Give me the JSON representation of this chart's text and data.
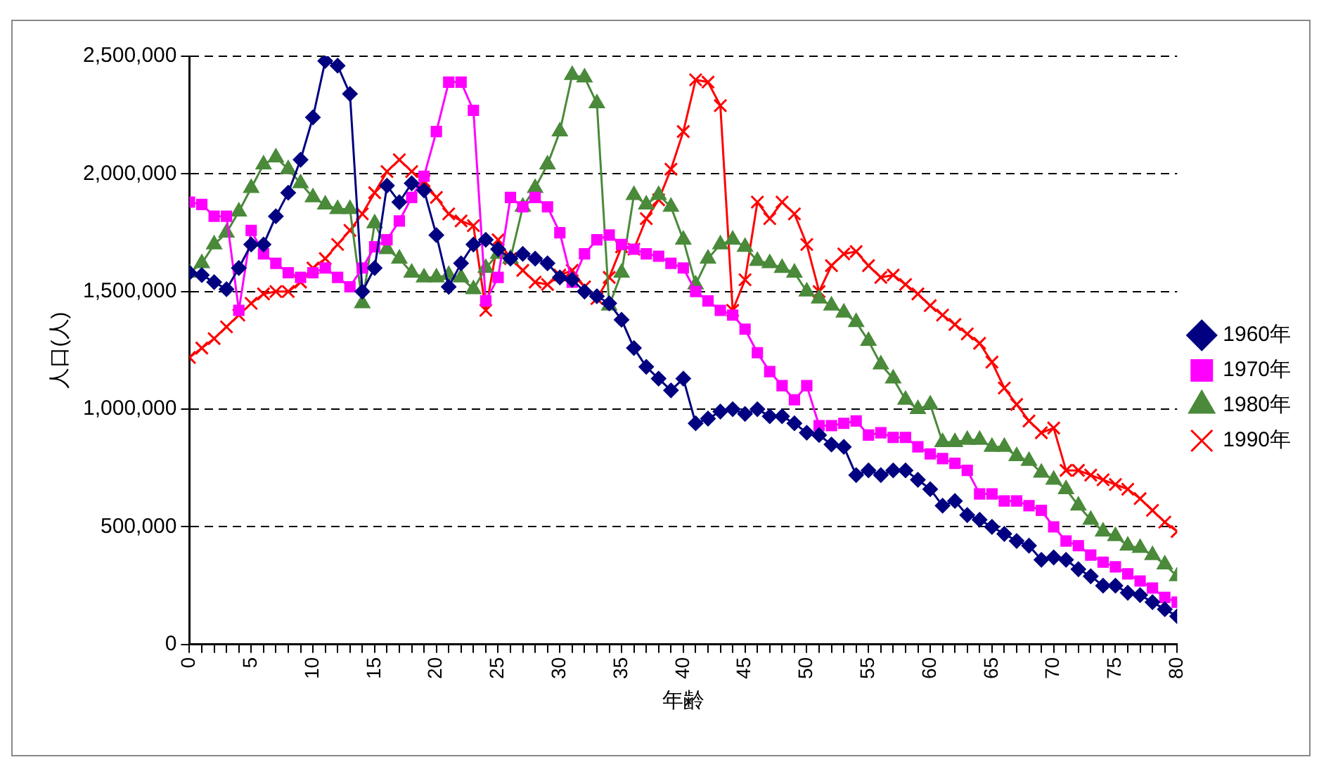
{
  "chart_data": {
    "type": "line",
    "xlabel": "年齢",
    "ylabel": "人口(人)",
    "x": [
      0,
      1,
      2,
      3,
      4,
      5,
      6,
      7,
      8,
      9,
      10,
      11,
      12,
      13,
      14,
      15,
      16,
      17,
      18,
      19,
      20,
      21,
      22,
      23,
      24,
      25,
      26,
      27,
      28,
      29,
      30,
      31,
      32,
      33,
      34,
      35,
      36,
      37,
      38,
      39,
      40,
      41,
      42,
      43,
      44,
      45,
      46,
      47,
      48,
      49,
      50,
      51,
      52,
      53,
      54,
      55,
      56,
      57,
      58,
      59,
      60,
      61,
      62,
      63,
      64,
      65,
      66,
      67,
      68,
      69,
      70,
      71,
      72,
      73,
      74,
      75,
      76,
      77,
      78,
      79,
      80
    ],
    "xlim": [
      0,
      80
    ],
    "xticks": [
      0,
      {
        "value": 1,
        "label": null
      },
      {
        "value": 2,
        "label": null
      },
      {
        "value": 3,
        "label": null
      },
      {
        "value": 4,
        "label": null
      },
      5,
      {
        "value": 6,
        "label": null
      },
      {
        "value": 7,
        "label": null
      },
      {
        "value": 8,
        "label": null
      },
      {
        "value": 9,
        "label": null
      },
      10,
      {
        "value": 11,
        "label": null
      },
      {
        "value": 12,
        "label": null
      },
      {
        "value": 13,
        "label": null
      },
      {
        "value": 14,
        "label": null
      },
      15,
      {
        "value": 16,
        "label": null
      },
      {
        "value": 17,
        "label": null
      },
      {
        "value": 18,
        "label": null
      },
      {
        "value": 19,
        "label": null
      },
      20,
      {
        "value": 21,
        "label": null
      },
      {
        "value": 22,
        "label": null
      },
      {
        "value": 23,
        "label": null
      },
      {
        "value": 24,
        "label": null
      },
      25,
      {
        "value": 26,
        "label": null
      },
      {
        "value": 27,
        "label": null
      },
      {
        "value": 28,
        "label": null
      },
      {
        "value": 29,
        "label": null
      },
      30,
      {
        "value": 31,
        "label": null
      },
      {
        "value": 32,
        "label": null
      },
      {
        "value": 33,
        "label": null
      },
      {
        "value": 34,
        "label": null
      },
      35,
      {
        "value": 36,
        "label": null
      },
      {
        "value": 37,
        "label": null
      },
      {
        "value": 38,
        "label": null
      },
      {
        "value": 39,
        "label": null
      },
      40,
      {
        "value": 41,
        "label": null
      },
      {
        "value": 42,
        "label": null
      },
      {
        "value": 43,
        "label": null
      },
      {
        "value": 44,
        "label": null
      },
      45,
      {
        "value": 46,
        "label": null
      },
      {
        "value": 47,
        "label": null
      },
      {
        "value": 48,
        "label": null
      },
      {
        "value": 49,
        "label": null
      },
      50,
      {
        "value": 51,
        "label": null
      },
      {
        "value": 52,
        "label": null
      },
      {
        "value": 53,
        "label": null
      },
      {
        "value": 54,
        "label": null
      },
      55,
      {
        "value": 56,
        "label": null
      },
      {
        "value": 57,
        "label": null
      },
      {
        "value": 58,
        "label": null
      },
      {
        "value": 59,
        "label": null
      },
      60,
      {
        "value": 61,
        "label": null
      },
      {
        "value": 62,
        "label": null
      },
      {
        "value": 63,
        "label": null
      },
      {
        "value": 64,
        "label": null
      },
      65,
      {
        "value": 66,
        "label": null
      },
      {
        "value": 67,
        "label": null
      },
      {
        "value": 68,
        "label": null
      },
      {
        "value": 69,
        "label": null
      },
      70,
      {
        "value": 71,
        "label": null
      },
      {
        "value": 72,
        "label": null
      },
      {
        "value": 73,
        "label": null
      },
      {
        "value": 74,
        "label": null
      },
      75,
      {
        "value": 76,
        "label": null
      },
      {
        "value": 77,
        "label": null
      },
      {
        "value": 78,
        "label": null
      },
      {
        "value": 79,
        "label": null
      },
      80
    ],
    "ylim": [
      0,
      2500000
    ],
    "yticks": [
      {
        "value": 0,
        "label": "0"
      },
      {
        "value": 500000,
        "label": "500,000"
      },
      {
        "value": 1000000,
        "label": "1,000,000"
      },
      {
        "value": 1500000,
        "label": "1,500,000"
      },
      {
        "value": 2000000,
        "label": "2,000,000"
      },
      {
        "value": 2500000,
        "label": "2,500,000"
      }
    ],
    "grid": "y",
    "legend": "right",
    "line_style": "solid",
    "series": [
      {
        "name": "1960年",
        "color": "#000080",
        "marker": "diamond",
        "values": [
          1580000,
          1570000,
          1540000,
          1510000,
          1600000,
          1700000,
          1700000,
          1820000,
          1920000,
          2060000,
          2240000,
          2480000,
          2460000,
          2340000,
          1500000,
          1600000,
          1950000,
          1880000,
          1960000,
          1930000,
          1740000,
          1520000,
          1620000,
          1700000,
          1720000,
          1680000,
          1640000,
          1660000,
          1640000,
          1620000,
          1560000,
          1550000,
          1500000,
          1480000,
          1450000,
          1380000,
          1260000,
          1180000,
          1130000,
          1080000,
          1130000,
          940000,
          960000,
          990000,
          1000000,
          980000,
          1000000,
          970000,
          970000,
          940000,
          900000,
          890000,
          850000,
          840000,
          720000,
          740000,
          720000,
          740000,
          740000,
          700000,
          660000,
          590000,
          610000,
          550000,
          530000,
          500000,
          470000,
          440000,
          420000,
          360000,
          370000,
          360000,
          320000,
          290000,
          250000,
          250000,
          220000,
          210000,
          180000,
          150000,
          120000
        ]
      },
      {
        "name": "1970年",
        "color": "#ff00ff",
        "marker": "square",
        "values": [
          1880000,
          1870000,
          1820000,
          1820000,
          1420000,
          1760000,
          1660000,
          1620000,
          1580000,
          1560000,
          1580000,
          1600000,
          1560000,
          1520000,
          1600000,
          1690000,
          1720000,
          1800000,
          1900000,
          1990000,
          2180000,
          2390000,
          2390000,
          2270000,
          1460000,
          1560000,
          1900000,
          1860000,
          1900000,
          1860000,
          1750000,
          1540000,
          1660000,
          1720000,
          1740000,
          1700000,
          1680000,
          1660000,
          1650000,
          1620000,
          1600000,
          1500000,
          1460000,
          1420000,
          1400000,
          1340000,
          1240000,
          1160000,
          1100000,
          1040000,
          1100000,
          930000,
          930000,
          940000,
          950000,
          890000,
          900000,
          880000,
          880000,
          840000,
          810000,
          790000,
          770000,
          740000,
          640000,
          640000,
          610000,
          610000,
          590000,
          570000,
          500000,
          440000,
          420000,
          380000,
          350000,
          330000,
          300000,
          270000,
          240000,
          200000,
          180000
        ]
      },
      {
        "name": "1980年",
        "color": "#4a8a3a",
        "marker": "triangle",
        "values": [
          1580000,
          1620000,
          1700000,
          1750000,
          1840000,
          1940000,
          2040000,
          2070000,
          2020000,
          1960000,
          1900000,
          1870000,
          1850000,
          1850000,
          1450000,
          1790000,
          1680000,
          1640000,
          1580000,
          1560000,
          1560000,
          1570000,
          1560000,
          1510000,
          1600000,
          1660000,
          1640000,
          1860000,
          1940000,
          2040000,
          2180000,
          2420000,
          2410000,
          2300000,
          1440000,
          1580000,
          1910000,
          1870000,
          1910000,
          1860000,
          1720000,
          1530000,
          1640000,
          1700000,
          1720000,
          1690000,
          1630000,
          1620000,
          1600000,
          1580000,
          1500000,
          1470000,
          1440000,
          1410000,
          1370000,
          1290000,
          1190000,
          1130000,
          1040000,
          1000000,
          1020000,
          860000,
          860000,
          870000,
          870000,
          840000,
          840000,
          800000,
          780000,
          730000,
          700000,
          660000,
          590000,
          530000,
          480000,
          460000,
          420000,
          410000,
          380000,
          340000,
          290000
        ]
      },
      {
        "name": "1990年",
        "color": "#ff0000",
        "marker": "cross",
        "values": [
          1220000,
          1260000,
          1300000,
          1350000,
          1400000,
          1450000,
          1490000,
          1500000,
          1500000,
          1540000,
          1600000,
          1640000,
          1700000,
          1760000,
          1830000,
          1920000,
          2010000,
          2060000,
          2010000,
          1970000,
          1900000,
          1830000,
          1800000,
          1780000,
          1420000,
          1720000,
          1640000,
          1590000,
          1540000,
          1530000,
          1570000,
          1590000,
          1520000,
          1470000,
          1560000,
          1690000,
          1680000,
          1810000,
          1890000,
          2020000,
          2180000,
          2400000,
          2390000,
          2290000,
          1420000,
          1550000,
          1880000,
          1810000,
          1880000,
          1830000,
          1700000,
          1500000,
          1610000,
          1660000,
          1670000,
          1610000,
          1560000,
          1570000,
          1530000,
          1490000,
          1440000,
          1400000,
          1360000,
          1320000,
          1280000,
          1200000,
          1090000,
          1020000,
          950000,
          900000,
          920000,
          740000,
          740000,
          720000,
          700000,
          680000,
          660000,
          620000,
          570000,
          520000,
          480000
        ]
      }
    ]
  }
}
